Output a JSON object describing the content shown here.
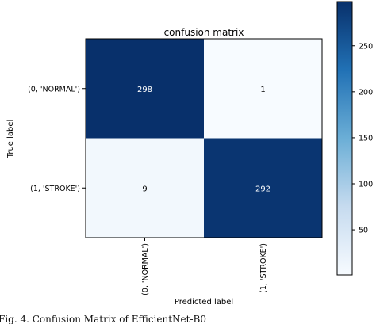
{
  "chart_data": {
    "type": "heatmap",
    "title": "confusion matrix",
    "xlabel": "Predicted label",
    "ylabel": "True label",
    "row_labels": [
      "(0, 'NORMAL')",
      "(1, 'STROKE')"
    ],
    "col_labels": [
      "(0, 'NORMAL')",
      "(1, 'STROKE')"
    ],
    "values": [
      [
        298,
        1
      ],
      [
        9,
        292
      ]
    ],
    "cell_labels": [
      [
        "298",
        "1"
      ],
      [
        "9",
        "292"
      ]
    ],
    "colormap": "Blues",
    "colorbar": {
      "ticks": [
        50,
        100,
        150,
        200,
        250
      ],
      "tick_labels": [
        "50",
        "100",
        "150",
        "200",
        "250"
      ],
      "range": [
        1,
        298
      ]
    }
  },
  "caption": "Fig. 4.   Confusion Matrix of EfficientNet-B0",
  "colors": {
    "cmap_low": "#f7fbff",
    "cmap_mid": "#6baed6",
    "cmap_high": "#08306b",
    "text_on_dark": "#ffffff",
    "text_on_light": "#000000"
  }
}
